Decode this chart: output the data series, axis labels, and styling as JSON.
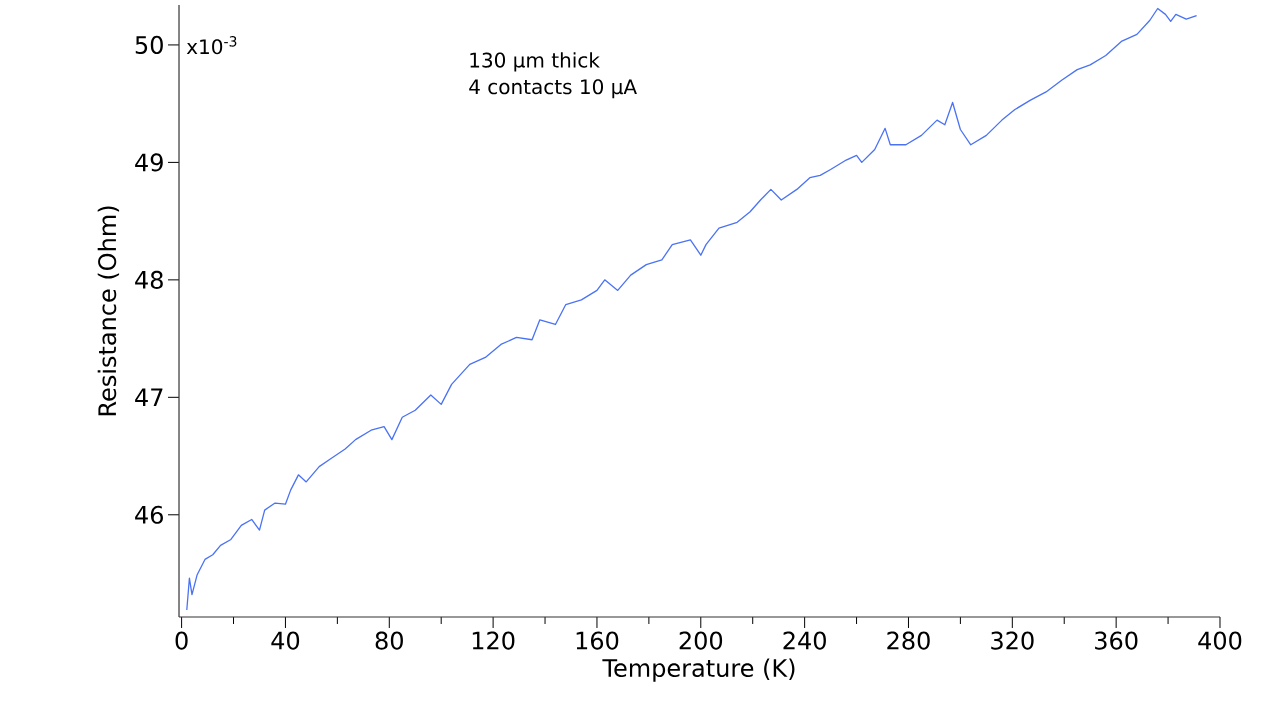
{
  "chart_data": {
    "type": "line",
    "xlabel": "Temperature (K)",
    "ylabel": "Resistance (Ohm)",
    "annotations": [
      "x10$^{-3}$",
      "130 µm thick",
      "4 contacts 10 µA"
    ],
    "xlim": [
      -1,
      400
    ],
    "ylim": [
      45.13,
      50.34
    ],
    "xticks": [
      0,
      {
        "value": 20,
        "label": null
      },
      40,
      {
        "value": 60,
        "label": null
      },
      80,
      {
        "value": 100,
        "label": null
      },
      120,
      {
        "value": 140,
        "label": null
      },
      160,
      {
        "value": 180,
        "label": null
      },
      200,
      {
        "value": 220,
        "label": null
      },
      240,
      {
        "value": 260,
        "label": null
      },
      280,
      {
        "value": 300,
        "label": null
      },
      320,
      {
        "value": 340,
        "label": null
      },
      360,
      {
        "value": 380,
        "label": null
      },
      400
    ],
    "yticks": [
      46,
      47,
      48,
      49,
      50
    ],
    "grid": false,
    "marker": "none",
    "line_style": "solid",
    "series": [
      {
        "color": "#4a72f5",
        "x": [
          2,
          3,
          4,
          6,
          9,
          12,
          15,
          19,
          23,
          27,
          30,
          32,
          36,
          40,
          42,
          45,
          48,
          53,
          57,
          63,
          67,
          73,
          78,
          81,
          85,
          90,
          96,
          100,
          104,
          111,
          117,
          123,
          129,
          135,
          138,
          144,
          148,
          154,
          160,
          163,
          168,
          173,
          179,
          185,
          189,
          196,
          200,
          202,
          207,
          214,
          219,
          223,
          227,
          231,
          237,
          242,
          246,
          250,
          256,
          260,
          262,
          267,
          271,
          273,
          279,
          285,
          291,
          294,
          297,
          300,
          304,
          310,
          316,
          321,
          327,
          333,
          339,
          345,
          350,
          356,
          362,
          368,
          373,
          376,
          379,
          381,
          383,
          387,
          391
        ],
        "values": [
          45.19,
          45.46,
          45.32,
          45.49,
          45.62,
          45.66,
          45.74,
          45.79,
          45.91,
          45.96,
          45.87,
          46.04,
          46.1,
          46.09,
          46.21,
          46.34,
          46.28,
          46.41,
          46.47,
          46.56,
          46.64,
          46.72,
          46.75,
          46.64,
          46.83,
          46.89,
          47.02,
          46.94,
          47.11,
          47.28,
          47.34,
          47.45,
          47.51,
          47.49,
          47.66,
          47.62,
          47.79,
          47.83,
          47.91,
          48.0,
          47.91,
          48.04,
          48.13,
          48.17,
          48.3,
          48.34,
          48.21,
          48.3,
          48.44,
          48.49,
          48.58,
          48.68,
          48.77,
          48.68,
          48.77,
          48.87,
          48.89,
          48.94,
          49.02,
          49.06,
          49.0,
          49.11,
          49.29,
          49.15,
          49.15,
          49.23,
          49.36,
          49.32,
          49.51,
          49.28,
          49.15,
          49.23,
          49.36,
          49.45,
          49.53,
          49.6,
          49.7,
          49.79,
          49.83,
          49.91,
          50.03,
          50.09,
          50.21,
          50.31,
          50.26,
          50.2,
          50.26,
          50.22,
          50.25
        ]
      }
    ]
  }
}
